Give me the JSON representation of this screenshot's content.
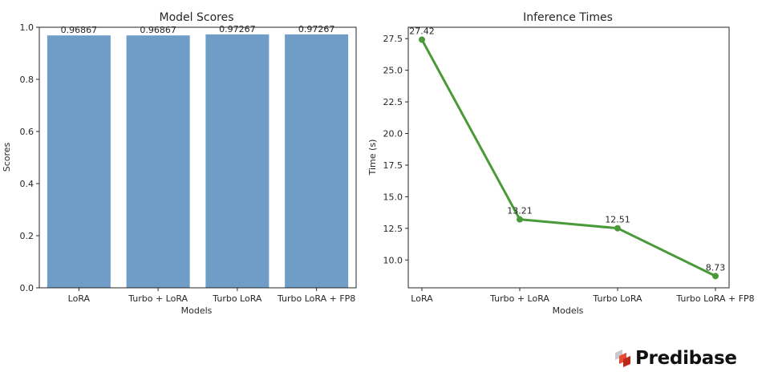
{
  "brand": {
    "name": "Predibase",
    "icon": "predibase-logo-icon",
    "colors": {
      "light": "#c9c9cf",
      "mid": "#e84b35",
      "dark": "#c0271a"
    }
  },
  "chart_data": [
    {
      "type": "bar",
      "title": "Model Scores",
      "xlabel": "Models",
      "ylabel": "Scores",
      "categories": [
        "LoRA",
        "Turbo + LoRA",
        "Turbo LoRA",
        "Turbo LoRA + FP8"
      ],
      "values": [
        0.96867,
        0.96867,
        0.97267,
        0.97267
      ],
      "value_labels": [
        "0.96867",
        "0.96867",
        "0.97267",
        "0.97267"
      ],
      "ylim": [
        0,
        1.0
      ],
      "yticks": [
        0.0,
        0.2,
        0.4,
        0.6,
        0.8,
        1.0
      ],
      "ytick_labels": [
        "0.0",
        "0.2",
        "0.4",
        "0.6",
        "0.8",
        "1.0"
      ],
      "color": "#6f9dc7",
      "grid": false
    },
    {
      "type": "line",
      "title": "Inference Times",
      "xlabel": "Models",
      "ylabel": "Time (s)",
      "categories": [
        "LoRA",
        "Turbo + LoRA",
        "Turbo LoRA",
        "Turbo LoRA + FP8"
      ],
      "values": [
        27.42,
        13.21,
        12.51,
        8.73
      ],
      "value_labels": [
        "27.42",
        "13.21",
        "12.51",
        "8.73"
      ],
      "ylim": [
        7.8,
        28.4
      ],
      "yticks": [
        10.0,
        12.5,
        15.0,
        17.5,
        20.0,
        22.5,
        25.0,
        27.5
      ],
      "ytick_labels": [
        "10.0",
        "12.5",
        "15.0",
        "17.5",
        "20.0",
        "22.5",
        "25.0",
        "27.5"
      ],
      "color": "#4a9a3a",
      "marker": "circle",
      "grid": false
    }
  ]
}
